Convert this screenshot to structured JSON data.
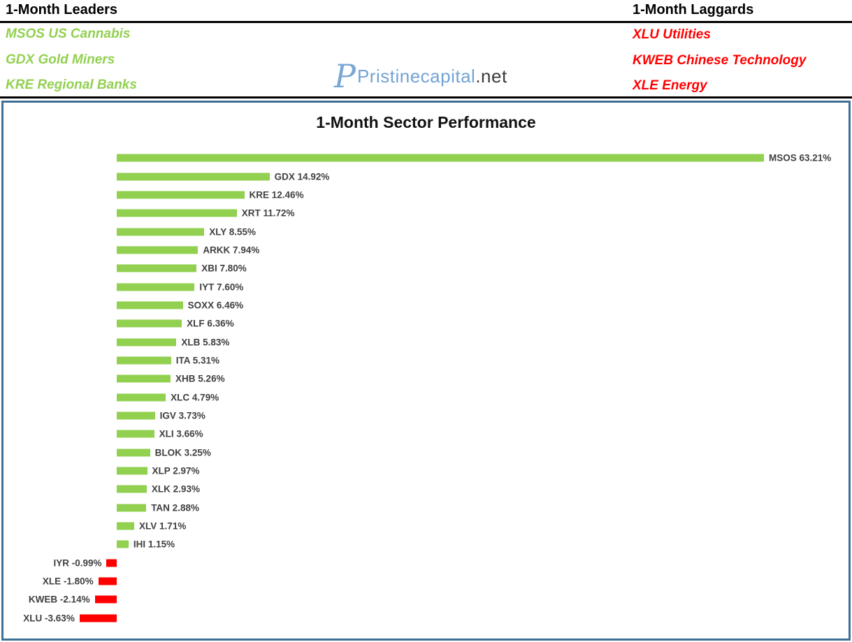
{
  "header": {
    "leaders": {
      "title": "1-Month Leaders",
      "color": "#92D050",
      "items": [
        "MSOS US Cannabis",
        "GDX Gold Miners",
        "KRE Regional Banks"
      ]
    },
    "laggards": {
      "title": "1-Month Laggards",
      "color": "#FF0000",
      "items": [
        "XLU Utilities",
        "KWEB Chinese Technology",
        "XLE Energy"
      ]
    },
    "logo": {
      "monogram": "P",
      "name": "Pristinecapital",
      "suffix": ".net",
      "name_color": "#74a3d4",
      "suffix_color": "#3a3a3a"
    }
  },
  "chart_data": {
    "type": "bar",
    "orientation": "horizontal",
    "title": "1-Month Sector Performance",
    "categories": [
      "MSOS",
      "GDX",
      "KRE",
      "XRT",
      "XLY",
      "ARKK",
      "XBI",
      "IYT",
      "SOXX",
      "XLF",
      "XLB",
      "ITA",
      "XHB",
      "XLC",
      "IGV",
      "XLI",
      "BLOK",
      "XLP",
      "XLK",
      "TAN",
      "XLV",
      "IHI",
      "IYR",
      "XLE",
      "KWEB",
      "XLU"
    ],
    "values": [
      63.21,
      14.92,
      12.46,
      11.72,
      8.55,
      7.94,
      7.8,
      7.6,
      6.46,
      6.36,
      5.83,
      5.31,
      5.26,
      4.79,
      3.73,
      3.66,
      3.25,
      2.97,
      2.93,
      2.88,
      1.71,
      1.15,
      -0.99,
      -1.8,
      -2.14,
      -3.63
    ],
    "value_label_format": "{category} {value}%",
    "xlim": [
      -3.63,
      63.21
    ],
    "grid": false,
    "legend": false,
    "positive_color": "#92D050",
    "negative_color": "#FF0000",
    "label_color": "#404040",
    "border_color": "#3e7096"
  }
}
